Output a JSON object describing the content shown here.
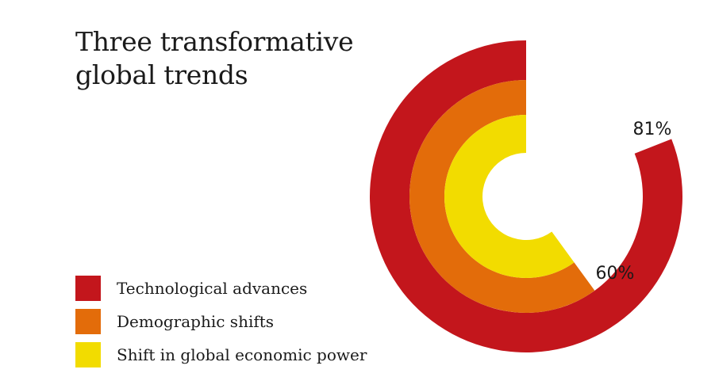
{
  "title_lines": [
    "Three transformative",
    "global trends"
  ],
  "chart_data": {
    "type": "radial-bar",
    "title": "Three transformative global trends",
    "series": [
      {
        "name": "Technological advances",
        "value": 81,
        "value_label": "81%",
        "color": "#C3161C"
      },
      {
        "name": "Demographic shifts",
        "value": 60,
        "value_label": "60%",
        "color": "#E36C0A"
      },
      {
        "name": "Shift in global economic power",
        "value": 60,
        "value_label": "",
        "color": "#F2DC00"
      }
    ],
    "max": 100,
    "legend_position": "bottom-left"
  }
}
